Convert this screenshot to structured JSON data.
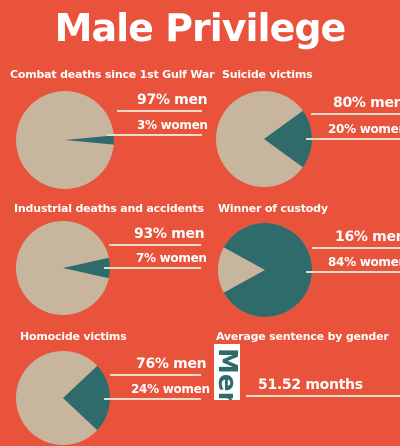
{
  "title": "Male Privilege",
  "colors": {
    "background": "#E9533B",
    "men": "#C8B59E",
    "women": "#2F6B6B"
  },
  "chart_data": [
    {
      "type": "pie",
      "title": "Combat deaths since 1st Gulf War",
      "categories": [
        "men",
        "women"
      ],
      "values": [
        97,
        3
      ],
      "labels": [
        "97% men",
        "3% women"
      ]
    },
    {
      "type": "pie",
      "title": "Suicide victims",
      "categories": [
        "men",
        "women"
      ],
      "values": [
        80,
        20
      ],
      "labels": [
        "80% men",
        "20% women"
      ]
    },
    {
      "type": "pie",
      "title": "Industrial deaths and accidents",
      "categories": [
        "men",
        "women"
      ],
      "values": [
        93,
        7
      ],
      "labels": [
        "93% men",
        "7% women"
      ]
    },
    {
      "type": "pie",
      "title": "Winner of custody",
      "categories": [
        "men",
        "women"
      ],
      "values": [
        16,
        84
      ],
      "labels": [
        "16% men",
        "84% women"
      ]
    },
    {
      "type": "pie",
      "title": "Homocide victims",
      "categories": [
        "men",
        "women"
      ],
      "values": [
        76,
        24
      ],
      "labels": [
        "76% men",
        "24% women"
      ]
    },
    {
      "type": "bar",
      "title": "Average sentence by gender",
      "categories": [
        "Men"
      ],
      "values": [
        51.52
      ],
      "labels": [
        "51.52 months"
      ]
    }
  ]
}
